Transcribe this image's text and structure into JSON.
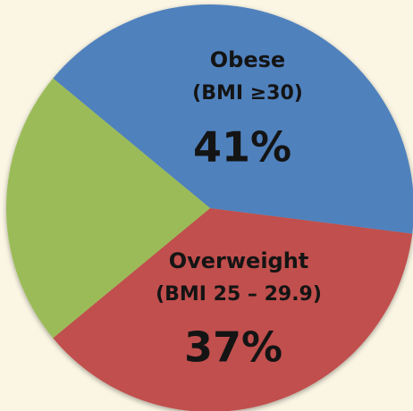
{
  "chart_data": {
    "type": "pie",
    "categories": [
      "Obese",
      "Overweight",
      null
    ],
    "category_notes": [
      "(BMI ≥30)",
      "(BMI 25 – 29.9)",
      null
    ],
    "values": [
      41,
      37,
      22
    ],
    "value_labels": [
      "41%",
      "37%",
      null
    ],
    "colors": [
      "#4f81bd",
      "#c0504d",
      "#9bbb59"
    ]
  }
}
